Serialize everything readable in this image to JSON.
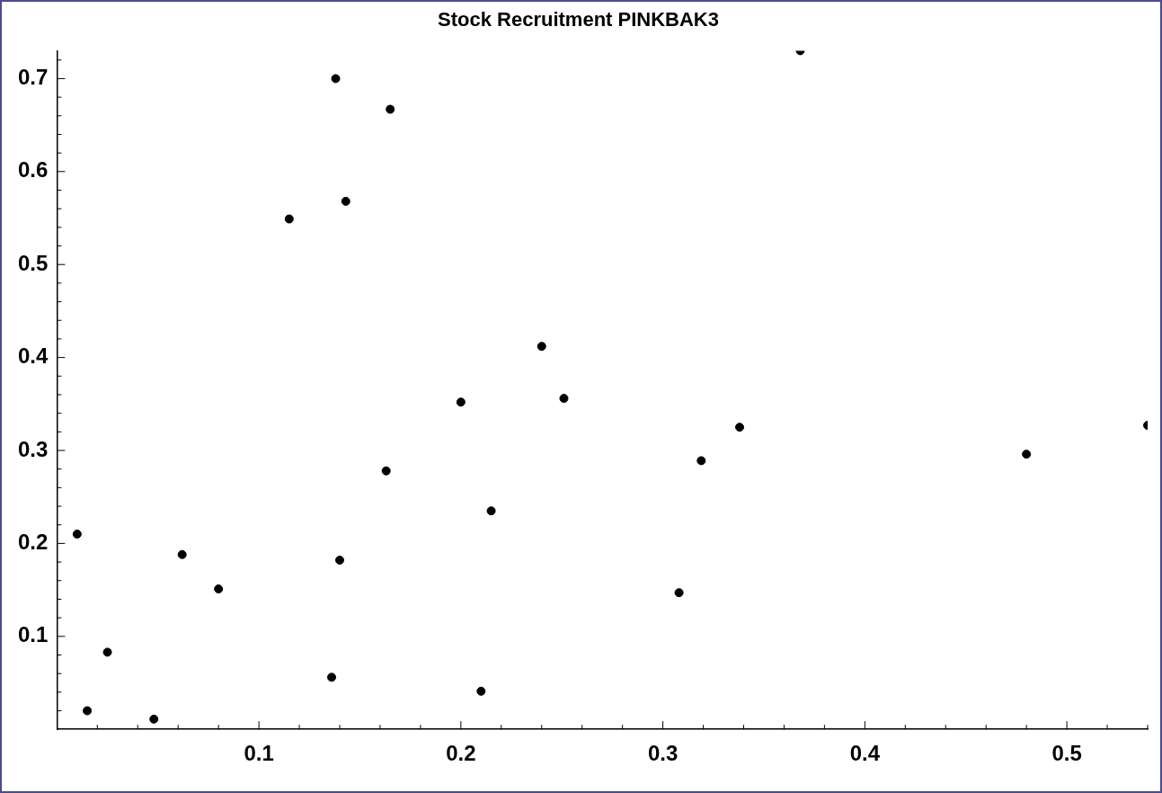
{
  "chart_data": {
    "type": "scatter",
    "title": "Stock Recruitment PINKBAK3",
    "marker": "circle",
    "grid": false,
    "legend": false,
    "xlim": [
      0,
      0.54
    ],
    "ylim": [
      0,
      0.73
    ],
    "xticks": [
      {
        "value": 0.02,
        "label": null
      },
      {
        "value": 0.04,
        "label": null
      },
      {
        "value": 0.06,
        "label": null
      },
      {
        "value": 0.08,
        "label": null
      },
      0.1,
      {
        "value": 0.12,
        "label": null
      },
      {
        "value": 0.14,
        "label": null
      },
      {
        "value": 0.16,
        "label": null
      },
      {
        "value": 0.18,
        "label": null
      },
      0.2,
      {
        "value": 0.22,
        "label": null
      },
      {
        "value": 0.24,
        "label": null
      },
      {
        "value": 0.26,
        "label": null
      },
      {
        "value": 0.28,
        "label": null
      },
      0.3,
      {
        "value": 0.32,
        "label": null
      },
      {
        "value": 0.34,
        "label": null
      },
      {
        "value": 0.36,
        "label": null
      },
      {
        "value": 0.38,
        "label": null
      },
      0.4,
      {
        "value": 0.42,
        "label": null
      },
      {
        "value": 0.44,
        "label": null
      },
      {
        "value": 0.46,
        "label": null
      },
      {
        "value": 0.48,
        "label": null
      },
      0.5,
      {
        "value": 0.52,
        "label": null
      },
      {
        "value": 0.54,
        "label": null
      }
    ],
    "yticks": [
      {
        "value": 0.02,
        "label": null
      },
      {
        "value": 0.04,
        "label": null
      },
      {
        "value": 0.06,
        "label": null
      },
      {
        "value": 0.08,
        "label": null
      },
      0.1,
      {
        "value": 0.12,
        "label": null
      },
      {
        "value": 0.14,
        "label": null
      },
      {
        "value": 0.16,
        "label": null
      },
      {
        "value": 0.18,
        "label": null
      },
      0.2,
      {
        "value": 0.22,
        "label": null
      },
      {
        "value": 0.24,
        "label": null
      },
      {
        "value": 0.26,
        "label": null
      },
      {
        "value": 0.28,
        "label": null
      },
      0.3,
      {
        "value": 0.32,
        "label": null
      },
      {
        "value": 0.34,
        "label": null
      },
      {
        "value": 0.36,
        "label": null
      },
      {
        "value": 0.38,
        "label": null
      },
      0.4,
      {
        "value": 0.42,
        "label": null
      },
      {
        "value": 0.44,
        "label": null
      },
      {
        "value": 0.46,
        "label": null
      },
      {
        "value": 0.48,
        "label": null
      },
      0.5,
      {
        "value": 0.52,
        "label": null
      },
      {
        "value": 0.54,
        "label": null
      },
      {
        "value": 0.56,
        "label": null
      },
      {
        "value": 0.58,
        "label": null
      },
      0.6,
      {
        "value": 0.62,
        "label": null
      },
      {
        "value": 0.64,
        "label": null
      },
      {
        "value": 0.66,
        "label": null
      },
      {
        "value": 0.68,
        "label": null
      },
      0.7,
      {
        "value": 0.72,
        "label": null
      }
    ],
    "series": [
      {
        "color": "#000000",
        "x": [
          0.01,
          0.015,
          0.025,
          0.048,
          0.062,
          0.08,
          0.136,
          0.14,
          0.163,
          0.2,
          0.21,
          0.215,
          0.251,
          0.308,
          0.319,
          0.338,
          0.48,
          0.54,
          0.138,
          0.165,
          0.143,
          0.115,
          0.24,
          0.368
        ],
        "values": [
          0.21,
          0.02,
          0.083,
          0.011,
          0.188,
          0.151,
          0.056,
          0.182,
          0.278,
          0.352,
          0.041,
          0.235,
          0.356,
          0.147,
          0.289,
          0.325,
          0.296,
          0.327,
          0.7,
          0.667,
          0.568,
          0.549,
          0.412,
          0.73
        ]
      }
    ]
  }
}
